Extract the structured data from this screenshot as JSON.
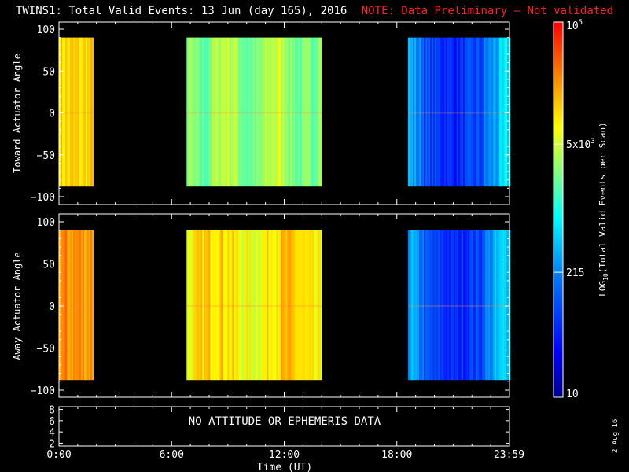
{
  "title": "TWINS1: Total Valid Events: 13 Jun (day 165), 2016",
  "note": "NOTE: Data Preliminary – Not validated",
  "date_stamp": "2 Aug 16",
  "colorbar": {
    "label": "LOG10(Total Valid Events per Scan)",
    "ticks": [
      "10",
      "215",
      "5x10^3",
      "10^5"
    ],
    "tick_values": [
      10,
      215,
      5000,
      100000
    ]
  },
  "colors": {
    "background": "#000000",
    "axes": "#ffffff",
    "note": "#ff2020"
  },
  "chart_data": [
    {
      "type": "heatmap",
      "ylabel": "Toward Actuator Angle",
      "xlim_hours": [
        0,
        24
      ],
      "ylim": [
        -100,
        100
      ],
      "yticks": [
        "100",
        "50",
        "0",
        "−50",
        "−100"
      ],
      "data_angle_range": [
        -88,
        90
      ],
      "blocks": [
        {
          "start_hour": 0.0,
          "end_hour": 1.8,
          "level": "5x10^3 to 2x10^4 (yellow-orange)"
        },
        {
          "start_hour": 6.8,
          "end_hour": 14.0,
          "level": "~5x10^3 (green-yellow)"
        },
        {
          "start_hour": 18.6,
          "end_hour": 24.0,
          "level": "~200 to 1x10^3 (blue, center ~20-22h)"
        }
      ]
    },
    {
      "type": "heatmap",
      "ylabel": "Away Actuator Angle",
      "xlim_hours": [
        0,
        24
      ],
      "ylim": [
        -100,
        100
      ],
      "yticks": [
        "100",
        "50",
        "0",
        "−50",
        "−100"
      ],
      "data_angle_range": [
        -88,
        90
      ],
      "blocks": [
        {
          "start_hour": 0.0,
          "end_hour": 1.8,
          "level": "~3x10^4 (orange)"
        },
        {
          "start_hour": 6.8,
          "end_hour": 14.0,
          "level": "1x10^4 to 2x10^4 (yellow-orange)"
        },
        {
          "start_hour": 18.6,
          "end_hour": 24.0,
          "level": "~200 to 1x10^3 (blue)"
        }
      ]
    },
    {
      "type": "table",
      "yticks": [
        "8",
        "6",
        "4",
        "2"
      ],
      "ylim": [
        1.5,
        8.5
      ],
      "message": "NO ATTITUDE OR EPHEMERIS DATA",
      "xticks": [
        "0:00",
        "6:00",
        "12:00",
        "18:00",
        "23:59"
      ],
      "xtick_hours": [
        0,
        6,
        12,
        18,
        23.98
      ],
      "xlabel": "Time (UT)"
    }
  ]
}
